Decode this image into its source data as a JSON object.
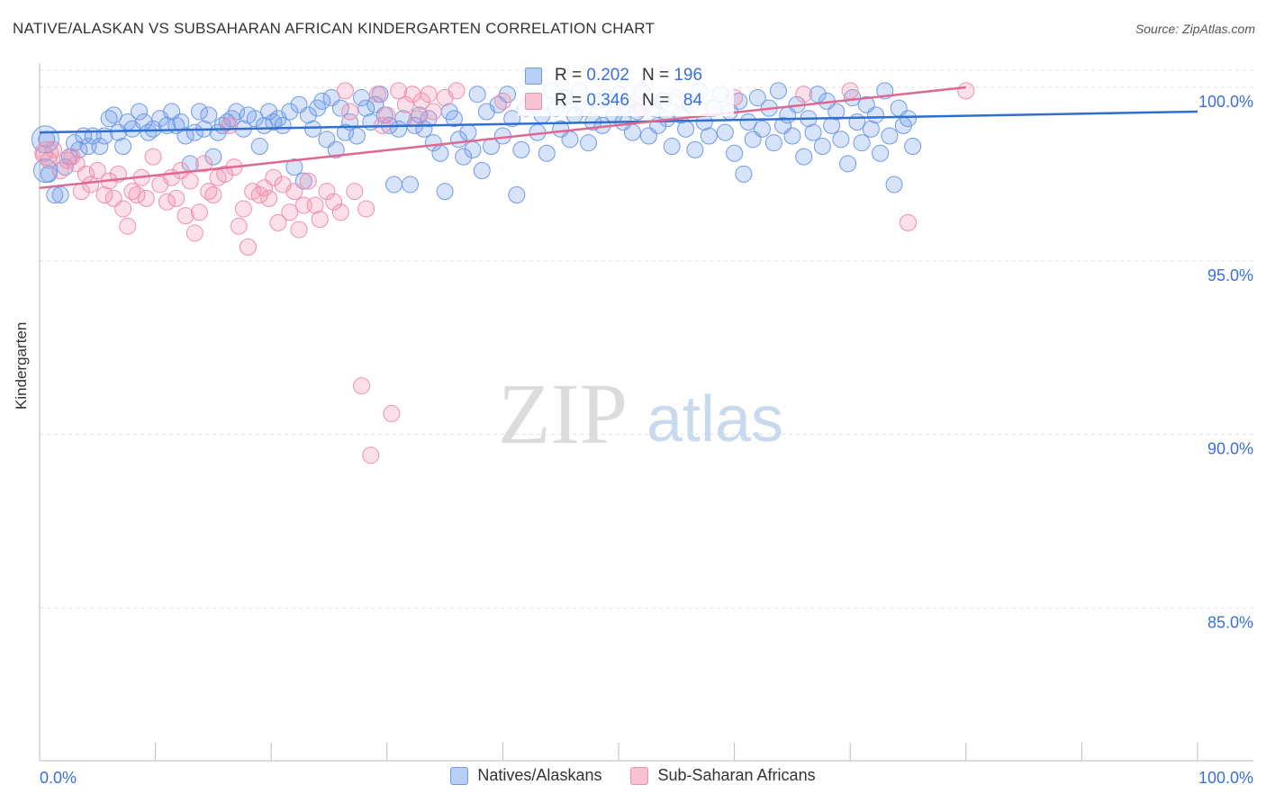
{
  "header": {
    "title": "NATIVE/ALASKAN VS SUBSAHARAN AFRICAN KINDERGARTEN CORRELATION CHART",
    "source": "Source: ZipAtlas.com"
  },
  "watermark": {
    "zip": "ZIP",
    "atlas": "atlas"
  },
  "stats": [
    {
      "r_label": "R =",
      "r_value": "0.202",
      "n_label": "N =",
      "n_value": "196",
      "color": "#6f9ae8"
    },
    {
      "r_label": "R =",
      "r_value": "0.346",
      "n_label": "N =",
      "n_value": "84",
      "color": "#ef8fae"
    }
  ],
  "legend": [
    {
      "label": "Natives/Alaskans",
      "color": "#6f9ae8"
    },
    {
      "label": "Sub-Saharan Africans",
      "color": "#ef8fae"
    }
  ],
  "chart_data": {
    "type": "scatter",
    "title": "NATIVE/ALASKAN VS SUBSAHARAN AFRICAN KINDERGARTEN CORRELATION CHART",
    "xlabel": "",
    "ylabel": "Kindergarten",
    "xlim": [
      0,
      100
    ],
    "ylim": [
      80.6,
      100.7
    ],
    "x_tick_labels": [
      "0.0%",
      "100.0%"
    ],
    "y_ticks": [
      85.0,
      90.0,
      95.0,
      100.0
    ],
    "y_tick_labels": [
      "85.0%",
      "90.0%",
      "95.0%",
      "100.0%"
    ],
    "grid": true,
    "series": [
      {
        "name": "Natives/Alaskans",
        "color": "#6f9ae8",
        "line_color": "#2f6fd0",
        "trend": {
          "x": [
            0,
            100
          ],
          "y": [
            98.7,
            99.3
          ]
        },
        "points": [
          [
            0.6,
            98.5
          ],
          [
            0.8,
            97.5
          ],
          [
            1.3,
            96.9
          ],
          [
            1.8,
            96.9
          ],
          [
            2.2,
            97.7
          ],
          [
            2.6,
            98.0
          ],
          [
            3.0,
            98.4
          ],
          [
            3.4,
            98.2
          ],
          [
            3.8,
            98.6
          ],
          [
            4.2,
            98.3
          ],
          [
            4.6,
            98.6
          ],
          [
            5.2,
            98.3
          ],
          [
            5.6,
            98.6
          ],
          [
            6.0,
            99.1
          ],
          [
            6.4,
            99.2
          ],
          [
            6.8,
            98.7
          ],
          [
            7.2,
            98.3
          ],
          [
            7.6,
            99.0
          ],
          [
            8.0,
            98.8
          ],
          [
            8.6,
            99.3
          ],
          [
            9.0,
            99.0
          ],
          [
            9.4,
            98.7
          ],
          [
            9.8,
            98.8
          ],
          [
            10.4,
            99.1
          ],
          [
            11.0,
            98.9
          ],
          [
            11.4,
            99.3
          ],
          [
            11.8,
            98.9
          ],
          [
            12.2,
            99.0
          ],
          [
            12.6,
            98.6
          ],
          [
            13.0,
            97.8
          ],
          [
            13.4,
            98.7
          ],
          [
            13.8,
            99.3
          ],
          [
            14.2,
            98.8
          ],
          [
            14.6,
            99.2
          ],
          [
            15.0,
            98.0
          ],
          [
            15.4,
            98.7
          ],
          [
            15.8,
            98.9
          ],
          [
            16.2,
            99.0
          ],
          [
            16.6,
            99.1
          ],
          [
            17.0,
            99.3
          ],
          [
            17.6,
            98.8
          ],
          [
            18.0,
            99.2
          ],
          [
            18.6,
            99.1
          ],
          [
            19.0,
            98.3
          ],
          [
            19.4,
            98.9
          ],
          [
            19.8,
            99.3
          ],
          [
            20.2,
            99.0
          ],
          [
            20.6,
            99.1
          ],
          [
            21.0,
            98.9
          ],
          [
            21.6,
            99.3
          ],
          [
            22.0,
            97.7
          ],
          [
            22.4,
            99.5
          ],
          [
            22.8,
            97.3
          ],
          [
            23.2,
            99.2
          ],
          [
            23.6,
            98.8
          ],
          [
            24.0,
            99.4
          ],
          [
            24.4,
            99.6
          ],
          [
            24.8,
            98.5
          ],
          [
            25.2,
            99.7
          ],
          [
            25.6,
            98.2
          ],
          [
            26.0,
            99.4
          ],
          [
            26.4,
            98.7
          ],
          [
            26.8,
            99.0
          ],
          [
            27.4,
            98.6
          ],
          [
            27.8,
            99.7
          ],
          [
            28.2,
            99.4
          ],
          [
            28.6,
            99.0
          ],
          [
            29.0,
            99.5
          ],
          [
            29.4,
            99.8
          ],
          [
            29.8,
            99.2
          ],
          [
            30.2,
            98.9
          ],
          [
            30.6,
            97.2
          ],
          [
            31.0,
            98.8
          ],
          [
            31.4,
            99.1
          ],
          [
            32.0,
            97.2
          ],
          [
            32.4,
            98.9
          ],
          [
            32.8,
            99.2
          ],
          [
            33.2,
            98.8
          ],
          [
            33.6,
            99.1
          ],
          [
            34.0,
            98.4
          ],
          [
            34.6,
            98.1
          ],
          [
            35.0,
            97.0
          ],
          [
            35.4,
            99.3
          ],
          [
            35.8,
            99.1
          ],
          [
            36.2,
            98.5
          ],
          [
            36.6,
            98.0
          ],
          [
            37.0,
            98.7
          ],
          [
            37.4,
            98.2
          ],
          [
            37.8,
            99.8
          ],
          [
            38.2,
            97.6
          ],
          [
            38.6,
            99.3
          ],
          [
            39.0,
            98.3
          ],
          [
            39.6,
            99.5
          ],
          [
            40.0,
            98.6
          ],
          [
            40.4,
            99.8
          ],
          [
            40.8,
            99.1
          ],
          [
            41.2,
            96.9
          ],
          [
            41.6,
            98.2
          ],
          [
            42.0,
            99.4
          ],
          [
            42.6,
            99.6
          ],
          [
            43.0,
            98.7
          ],
          [
            43.4,
            99.2
          ],
          [
            43.8,
            98.1
          ],
          [
            44.2,
            99.9
          ],
          [
            44.6,
            99.4
          ],
          [
            45.0,
            98.8
          ],
          [
            45.4,
            99.7
          ],
          [
            45.8,
            98.5
          ],
          [
            46.2,
            99.2
          ],
          [
            46.6,
            99.9
          ],
          [
            47.0,
            99.4
          ],
          [
            47.4,
            98.4
          ],
          [
            47.8,
            99.0
          ],
          [
            48.2,
            99.6
          ],
          [
            48.6,
            98.9
          ],
          [
            49.0,
            99.7
          ],
          [
            49.6,
            99.2
          ],
          [
            50.0,
            99.8
          ],
          [
            50.4,
            99.0
          ],
          [
            50.8,
            99.5
          ],
          [
            51.2,
            98.7
          ],
          [
            51.6,
            99.3
          ],
          [
            52.0,
            99.9
          ],
          [
            52.6,
            98.6
          ],
          [
            53.0,
            99.4
          ],
          [
            53.4,
            98.9
          ],
          [
            53.8,
            99.6
          ],
          [
            54.2,
            99.1
          ],
          [
            54.6,
            98.3
          ],
          [
            55.0,
            99.7
          ],
          [
            55.4,
            99.2
          ],
          [
            55.8,
            98.8
          ],
          [
            56.2,
            99.5
          ],
          [
            56.6,
            98.2
          ],
          [
            57.0,
            99.9
          ],
          [
            57.4,
            99.0
          ],
          [
            57.8,
            98.6
          ],
          [
            58.2,
            99.4
          ],
          [
            58.8,
            99.8
          ],
          [
            59.2,
            98.7
          ],
          [
            59.6,
            99.3
          ],
          [
            60.0,
            98.1
          ],
          [
            60.4,
            99.6
          ],
          [
            60.8,
            97.5
          ],
          [
            61.2,
            99.0
          ],
          [
            61.6,
            98.5
          ],
          [
            62.0,
            99.7
          ],
          [
            62.4,
            98.8
          ],
          [
            63.0,
            99.4
          ],
          [
            63.4,
            98.4
          ],
          [
            63.8,
            99.9
          ],
          [
            64.2,
            98.9
          ],
          [
            64.6,
            99.2
          ],
          [
            65.0,
            98.6
          ],
          [
            65.4,
            99.5
          ],
          [
            66.0,
            98.0
          ],
          [
            66.4,
            99.1
          ],
          [
            66.8,
            98.7
          ],
          [
            67.2,
            99.8
          ],
          [
            67.6,
            98.3
          ],
          [
            68.0,
            99.6
          ],
          [
            68.4,
            98.9
          ],
          [
            68.8,
            99.3
          ],
          [
            69.2,
            98.5
          ],
          [
            69.8,
            97.8
          ],
          [
            70.2,
            99.7
          ],
          [
            70.6,
            99.0
          ],
          [
            71.0,
            98.4
          ],
          [
            71.4,
            99.5
          ],
          [
            71.8,
            98.8
          ],
          [
            72.2,
            99.2
          ],
          [
            72.6,
            98.1
          ],
          [
            73.0,
            99.9
          ],
          [
            73.4,
            98.6
          ],
          [
            73.8,
            97.2
          ],
          [
            74.2,
            99.4
          ],
          [
            74.6,
            98.9
          ],
          [
            75.0,
            99.1
          ],
          [
            75.4,
            98.3
          ]
        ]
      },
      {
        "name": "Sub-Saharan Africans",
        "color": "#ef8fae",
        "line_color": "#e0678f",
        "trend": {
          "x": [
            0,
            80
          ],
          "y": [
            97.1,
            100.0
          ]
        },
        "points": [
          [
            0.4,
            98.1
          ],
          [
            0.8,
            97.9
          ],
          [
            1.2,
            98.2
          ],
          [
            1.8,
            97.6
          ],
          [
            2.4,
            97.9
          ],
          [
            2.8,
            98.0
          ],
          [
            3.2,
            97.8
          ],
          [
            3.6,
            97.0
          ],
          [
            4.0,
            97.5
          ],
          [
            4.4,
            97.2
          ],
          [
            5.0,
            97.6
          ],
          [
            5.6,
            96.9
          ],
          [
            6.0,
            97.3
          ],
          [
            6.4,
            96.8
          ],
          [
            6.8,
            97.5
          ],
          [
            7.2,
            96.5
          ],
          [
            7.6,
            96.0
          ],
          [
            8.0,
            97.0
          ],
          [
            8.4,
            96.9
          ],
          [
            8.8,
            97.4
          ],
          [
            9.2,
            96.8
          ],
          [
            9.8,
            98.0
          ],
          [
            10.4,
            97.2
          ],
          [
            11.0,
            96.7
          ],
          [
            11.4,
            97.4
          ],
          [
            11.8,
            96.8
          ],
          [
            12.2,
            97.6
          ],
          [
            12.6,
            96.3
          ],
          [
            13.0,
            97.3
          ],
          [
            13.4,
            95.8
          ],
          [
            13.8,
            96.4
          ],
          [
            14.2,
            97.8
          ],
          [
            14.6,
            97.0
          ],
          [
            15.0,
            96.9
          ],
          [
            15.4,
            97.4
          ],
          [
            16.0,
            97.5
          ],
          [
            16.4,
            98.9
          ],
          [
            16.8,
            97.7
          ],
          [
            17.2,
            96.0
          ],
          [
            17.6,
            96.5
          ],
          [
            18.0,
            95.4
          ],
          [
            18.4,
            97.0
          ],
          [
            19.0,
            96.9
          ],
          [
            19.4,
            97.1
          ],
          [
            19.8,
            96.8
          ],
          [
            20.2,
            97.4
          ],
          [
            20.6,
            96.1
          ],
          [
            21.0,
            97.2
          ],
          [
            21.6,
            96.4
          ],
          [
            22.0,
            97.0
          ],
          [
            22.4,
            95.9
          ],
          [
            22.8,
            96.6
          ],
          [
            23.2,
            97.3
          ],
          [
            23.8,
            96.6
          ],
          [
            24.2,
            96.2
          ],
          [
            24.8,
            97.0
          ],
          [
            25.4,
            96.7
          ],
          [
            26.0,
            96.4
          ],
          [
            26.4,
            99.9
          ],
          [
            26.8,
            99.3
          ],
          [
            27.2,
            97.0
          ],
          [
            27.8,
            91.4
          ],
          [
            28.2,
            96.5
          ],
          [
            28.6,
            89.4
          ],
          [
            29.2,
            99.8
          ],
          [
            29.6,
            98.9
          ],
          [
            30.0,
            99.2
          ],
          [
            30.4,
            90.6
          ],
          [
            31.0,
            99.9
          ],
          [
            31.6,
            99.5
          ],
          [
            32.2,
            99.8
          ],
          [
            32.6,
            99.1
          ],
          [
            33.0,
            99.6
          ],
          [
            33.6,
            99.8
          ],
          [
            34.0,
            99.3
          ],
          [
            35.0,
            99.7
          ],
          [
            36.0,
            99.9
          ],
          [
            40.0,
            99.6
          ],
          [
            52.0,
            99.4
          ],
          [
            60.0,
            99.7
          ],
          [
            66.0,
            99.8
          ],
          [
            70.0,
            99.9
          ],
          [
            75.0,
            96.1
          ],
          [
            80.0,
            99.9
          ]
        ]
      }
    ]
  }
}
